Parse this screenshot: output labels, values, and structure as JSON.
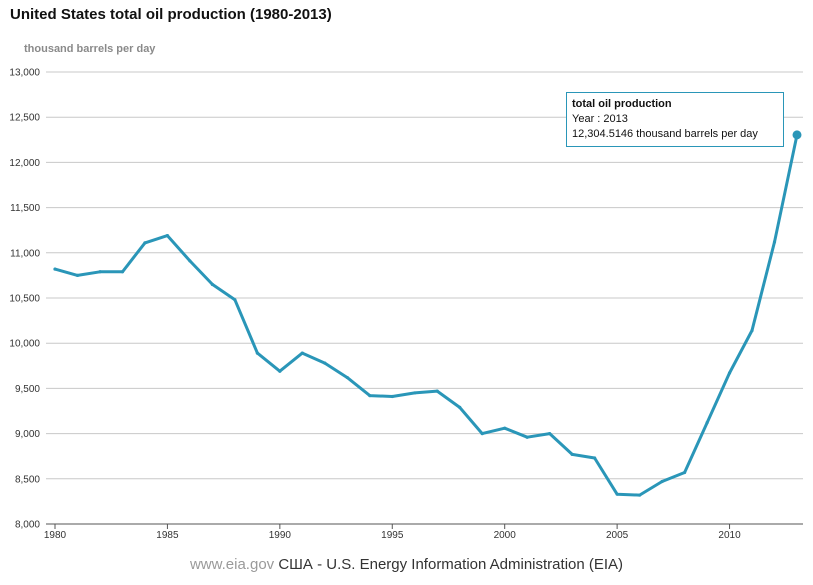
{
  "chart_data": {
    "type": "line",
    "title": "United States total oil production (1980-2013)",
    "ylabel": "thousand barrels per day",
    "xlabel": "",
    "xlim": [
      1980,
      2013
    ],
    "ylim": [
      8000,
      13000
    ],
    "y_ticks": [
      {
        "value": 8000,
        "label": "8,000"
      },
      {
        "value": 8500,
        "label": "8,500"
      },
      {
        "value": 9000,
        "label": "9,000"
      },
      {
        "value": 9500,
        "label": "9,500"
      },
      {
        "value": 10000,
        "label": "10,000"
      },
      {
        "value": 10500,
        "label": "10,500"
      },
      {
        "value": 11000,
        "label": "11,000"
      },
      {
        "value": 11500,
        "label": "11,500"
      },
      {
        "value": 12000,
        "label": "12,000"
      },
      {
        "value": 12500,
        "label": "12,500"
      },
      {
        "value": 13000,
        "label": "13,000"
      }
    ],
    "x_ticks": [
      {
        "value": 1980,
        "label": "1980"
      },
      {
        "value": 1985,
        "label": "1985"
      },
      {
        "value": 1990,
        "label": "1990"
      },
      {
        "value": 1995,
        "label": "1995"
      },
      {
        "value": 2000,
        "label": "2000"
      },
      {
        "value": 2005,
        "label": "2005"
      },
      {
        "value": 2010,
        "label": "2010"
      }
    ],
    "grid": "horizontal",
    "line_color": "#2a96b8",
    "series": [
      {
        "name": "total oil production",
        "x": [
          1980,
          1981,
          1982,
          1983,
          1984,
          1985,
          1986,
          1987,
          1988,
          1989,
          1990,
          1991,
          1992,
          1993,
          1994,
          1995,
          1996,
          1997,
          1998,
          1999,
          2000,
          2001,
          2002,
          2003,
          2004,
          2005,
          2006,
          2007,
          2008,
          2009,
          2010,
          2011,
          2012,
          2013
        ],
        "values": [
          10820,
          10750,
          10790,
          10790,
          11110,
          11190,
          10910,
          10650,
          10480,
          9890,
          9690,
          9890,
          9780,
          9620,
          9420,
          9410,
          9450,
          9470,
          9290,
          9000,
          9060,
          8960,
          9000,
          8770,
          8730,
          8330,
          8320,
          8470,
          8570,
          9120,
          9670,
          10140,
          11120,
          12304.5146
        ]
      }
    ],
    "tooltip": {
      "title": "total oil production",
      "year_line": "Year : 2013",
      "value_line": "12,304.5146 thousand barrels per day"
    }
  },
  "footer": {
    "site": "www.eia.gov",
    "credit": "США - U.S. Energy Information Administration (EIA)"
  }
}
